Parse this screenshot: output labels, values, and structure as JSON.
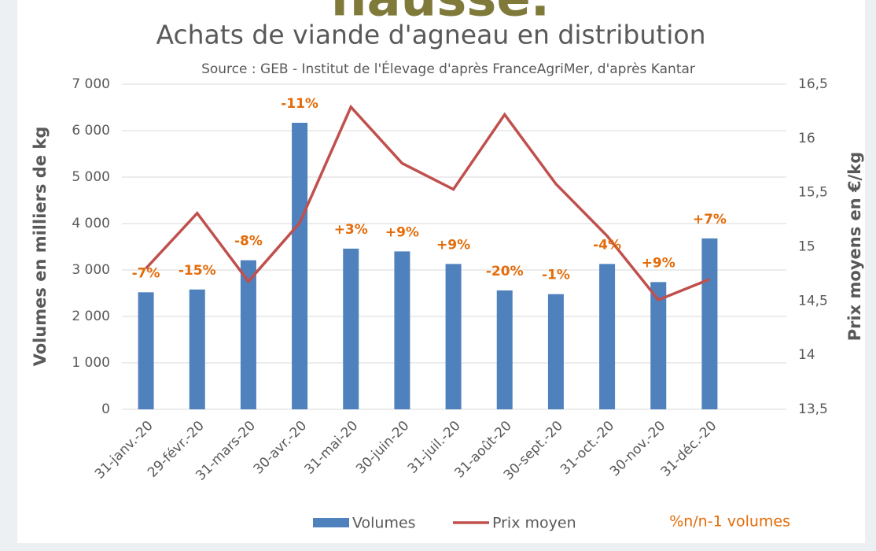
{
  "header": {
    "title": "hausse."
  },
  "chart_data": {
    "type": "bar_line",
    "title": "Achats de viande d'agneau en distribution",
    "subtitle": "Source : GEB - Institut de l'Élevage d'après FranceAgriMer, d'après Kantar",
    "ylabel": "Volumes en milliers de kg",
    "y2label": "Prix moyens en €/kg",
    "note": "%n/n-1 volumes",
    "categories": [
      "31-janv.-20",
      "29-févr.-20",
      "31-mars-20",
      "30-avr.-20",
      "31-mai-20",
      "30-juin-20",
      "31-juil.-20",
      "31-août-20",
      "30-sept.-20",
      "31-oct.-20",
      "30-nov.-20",
      "31-déc.-20"
    ],
    "series": [
      {
        "name": "Volumes",
        "type": "bar",
        "color": "#4f81bd",
        "values": [
          2520,
          2580,
          3210,
          6170,
          3460,
          3400,
          3130,
          2560,
          2480,
          3130,
          2740,
          3680
        ],
        "annotations": [
          "-7%",
          "-15%",
          "-8%",
          "-11%",
          "+3%",
          "+9%",
          "+9%",
          "-20%",
          "-1%",
          "-4%",
          "+9%",
          "+7%"
        ],
        "annotation_color": "#e46c0a"
      },
      {
        "name": "Prix moyen",
        "type": "line",
        "axis": "y2",
        "color": "#c0504d",
        "values": [
          14.8,
          15.31,
          14.68,
          15.22,
          16.29,
          15.77,
          15.53,
          16.22,
          15.58,
          15.1,
          14.51,
          14.7
        ]
      }
    ],
    "ylim": [
      0,
      7000
    ],
    "yticks": [
      0,
      {
        "value": 1000,
        "label": "1 000"
      },
      {
        "value": 2000,
        "label": "2 000"
      },
      {
        "value": 3000,
        "label": "3 000"
      },
      {
        "value": 4000,
        "label": "4 000"
      },
      {
        "value": 5000,
        "label": "5 000"
      },
      {
        "value": 6000,
        "label": "6 000"
      },
      {
        "value": 7000,
        "label": "7 000"
      }
    ],
    "y2lim": [
      13.5,
      16.5
    ],
    "y2ticks": [
      {
        "value": 13.5,
        "label": "13,5"
      },
      14,
      {
        "value": 14.5,
        "label": "14,5"
      },
      15,
      {
        "value": 15.5,
        "label": "15,5"
      },
      16,
      {
        "value": 16.5,
        "label": "16,5"
      }
    ],
    "grid": true,
    "legend": "bottom"
  }
}
